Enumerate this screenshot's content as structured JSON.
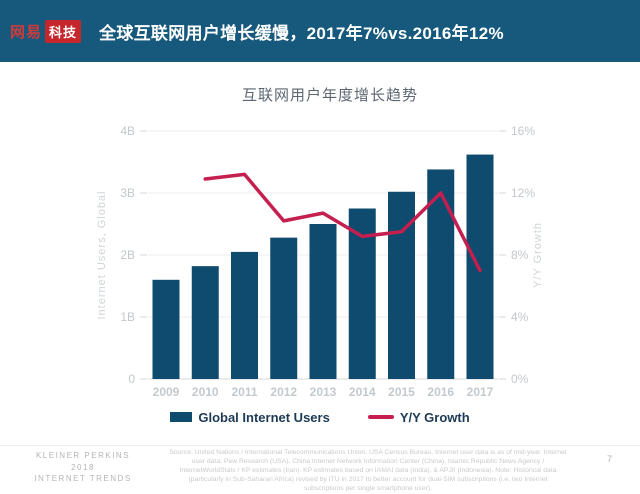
{
  "header": {
    "logo_red_text": "网易",
    "logo_boxed_text": "科技",
    "title": "全球互联网用户增长缓慢，2017年7%vs.2016年12%"
  },
  "chart_data": {
    "type": "bar",
    "title": "互联网用户年度增长趋势",
    "categories": [
      "2009",
      "2010",
      "2011",
      "2012",
      "2013",
      "2014",
      "2015",
      "2016",
      "2017"
    ],
    "series": [
      {
        "name": "Global Internet Users",
        "render": "bar",
        "axis": "left",
        "unit": "B",
        "color": "#0e4b6e",
        "values": [
          1.6,
          1.82,
          2.05,
          2.28,
          2.5,
          2.75,
          3.02,
          3.38,
          3.62
        ]
      },
      {
        "name": "Y/Y Growth",
        "render": "line",
        "axis": "right",
        "unit": "%",
        "color": "#c41f4e",
        "values": [
          null,
          12.9,
          13.2,
          10.2,
          10.7,
          9.2,
          9.5,
          12.0,
          7.0
        ]
      }
    ],
    "left_axis": {
      "label": "Internet Users, Global",
      "min": 0,
      "max": 4,
      "ticks": [
        "0",
        "1B",
        "2B",
        "3B",
        "4B"
      ]
    },
    "right_axis": {
      "label": "Y/Y Growth",
      "min": 0,
      "max": 16,
      "ticks": [
        "0%",
        "4%",
        "8%",
        "12%",
        "16%"
      ]
    },
    "grid": true,
    "legend_position": "bottom"
  },
  "footer": {
    "brand_line1": "KLEINER PERKINS",
    "brand_line2": "2018",
    "brand_line3": "INTERNET TRENDS",
    "source": "Source: United Nations / International Telecommunications Union, USA Census Bureau. Internet user data is as of mid-year. Internet user data: Pew Research (USA), China Internet Network Information Center (China), Islamic Republic News Agency / InternetWorldStats / KP estimates (Iran). KP estimates based on IAMAI data (India), & APJII (Indonesia). Note: Historical data (particularly in Sub-Saharan Africa) revised by ITU in 2017 to better account for dual-SIM subscriptions (i.e. two Internet subscriptions per single smartphone user).",
    "page_number": "7"
  },
  "colors": {
    "header_bg": "#17597c",
    "brand_red": "#c5272c",
    "bar": "#0e4b6e",
    "line": "#c41f4e"
  }
}
